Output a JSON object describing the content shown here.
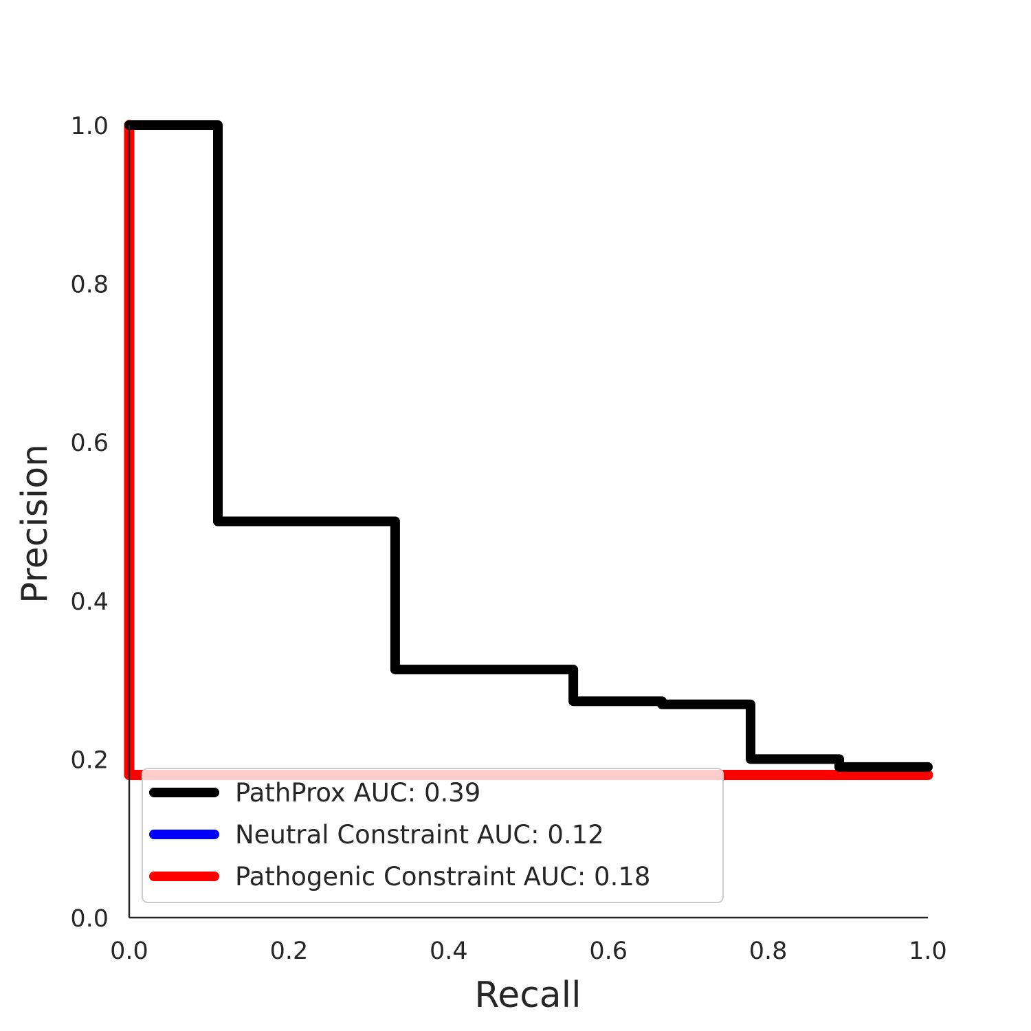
{
  "chart_data": {
    "type": "line",
    "title": "",
    "xlabel": "Recall",
    "ylabel": "Precision",
    "xlim": [
      0.0,
      1.0
    ],
    "ylim": [
      0.0,
      1.0
    ],
    "xticks": [
      "0.0",
      "0.2",
      "0.4",
      "0.6",
      "0.8",
      "1.0"
    ],
    "yticks": [
      "0.0",
      "0.2",
      "0.4",
      "0.6",
      "0.8",
      "1.0"
    ],
    "grid": false,
    "legend_position": "lower-left",
    "series": [
      {
        "name": "PathProx AUC:  0.39",
        "color": "#000000",
        "step": true,
        "points": [
          [
            0.0,
            1.0
          ],
          [
            0.111,
            1.0
          ],
          [
            0.111,
            0.5
          ],
          [
            0.333,
            0.5
          ],
          [
            0.333,
            0.313
          ],
          [
            0.556,
            0.313
          ],
          [
            0.556,
            0.273
          ],
          [
            0.667,
            0.273
          ],
          [
            0.667,
            0.269
          ],
          [
            0.778,
            0.269
          ],
          [
            0.778,
            0.2
          ],
          [
            0.889,
            0.2
          ],
          [
            0.889,
            0.19
          ],
          [
            1.0,
            0.19
          ]
        ]
      },
      {
        "name": "Neutral Constraint AUC:  0.12",
        "color": "#0000ff",
        "step": true,
        "points": []
      },
      {
        "name": "Pathogenic Constraint AUC:  0.18",
        "color": "#ff0000",
        "step": true,
        "points": [
          [
            0.0,
            1.0
          ],
          [
            0.0,
            0.18
          ],
          [
            1.0,
            0.18
          ]
        ]
      }
    ]
  }
}
